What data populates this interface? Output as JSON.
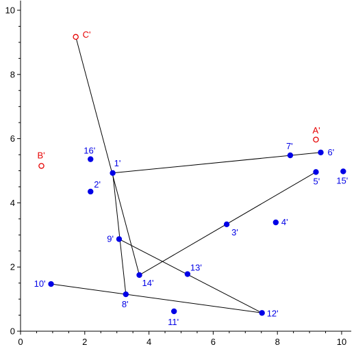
{
  "chart_data": {
    "type": "scatter",
    "xlim": [
      0,
      10.3
    ],
    "ylim": [
      0,
      10.3
    ],
    "x_ticks": [
      0,
      2,
      4,
      6,
      8,
      10
    ],
    "y_ticks": [
      0,
      2,
      4,
      6,
      8,
      10
    ],
    "grid": false,
    "colors": {
      "point": "#0000e6",
      "ref": "#e60000",
      "line": "#000000",
      "axis": "#000000"
    },
    "points": [
      {
        "label": "1'",
        "x": 2.87,
        "y": 4.93
      },
      {
        "label": "2'",
        "x": 2.18,
        "y": 4.35
      },
      {
        "label": "3'",
        "x": 6.42,
        "y": 3.33
      },
      {
        "label": "4'",
        "x": 7.95,
        "y": 3.39
      },
      {
        "label": "5'",
        "x": 9.2,
        "y": 4.96
      },
      {
        "label": "6'",
        "x": 9.35,
        "y": 5.57
      },
      {
        "label": "7'",
        "x": 8.4,
        "y": 5.48
      },
      {
        "label": "8'",
        "x": 3.28,
        "y": 1.15
      },
      {
        "label": "9'",
        "x": 3.07,
        "y": 2.87
      },
      {
        "label": "10'",
        "x": 0.95,
        "y": 1.47
      },
      {
        "label": "11'",
        "x": 4.78,
        "y": 0.62
      },
      {
        "label": "12'",
        "x": 7.52,
        "y": 0.57
      },
      {
        "label": "13'",
        "x": 5.2,
        "y": 1.78
      },
      {
        "label": "14'",
        "x": 3.7,
        "y": 1.75
      },
      {
        "label": "15'",
        "x": 10.05,
        "y": 4.98
      },
      {
        "label": "16'",
        "x": 2.18,
        "y": 5.36
      }
    ],
    "ref_points": [
      {
        "label": "A'",
        "x": 9.2,
        "y": 5.97
      },
      {
        "label": "B'",
        "x": 0.65,
        "y": 5.15
      },
      {
        "label": "C'",
        "x": 1.72,
        "y": 9.17
      }
    ],
    "segments": [
      [
        "C'",
        "14'"
      ],
      [
        "1'",
        "6'"
      ],
      [
        "1'",
        "8'"
      ],
      [
        "14'",
        "5'"
      ],
      [
        "9'",
        "12'"
      ],
      [
        "10'",
        "12'"
      ]
    ]
  }
}
